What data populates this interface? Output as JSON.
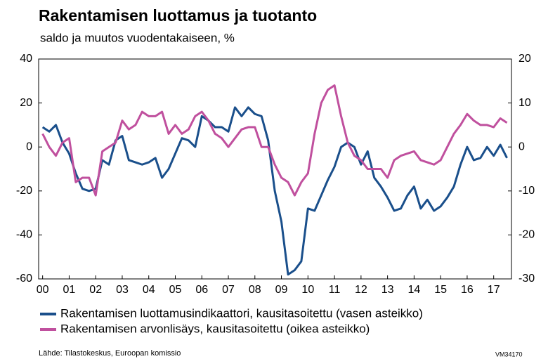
{
  "chart_data": {
    "type": "line",
    "title": "Rakentamisen luottamus ja tuotanto",
    "subtitle": "saldo ja muutos vuodentakaiseen, %",
    "source": "Lähde: Tilastokeskus, Euroopan komissio",
    "code": "VM34170",
    "x": [
      2000,
      2000.25,
      2000.5,
      2000.75,
      2001,
      2001.25,
      2001.5,
      2001.75,
      2002,
      2002.25,
      2002.5,
      2002.75,
      2003,
      2003.25,
      2003.5,
      2003.75,
      2004,
      2004.25,
      2004.5,
      2004.75,
      2005,
      2005.25,
      2005.5,
      2005.75,
      2006,
      2006.25,
      2006.5,
      2006.75,
      2007,
      2007.25,
      2007.5,
      2007.75,
      2008,
      2008.25,
      2008.5,
      2008.75,
      2009,
      2009.25,
      2009.5,
      2009.75,
      2010,
      2010.25,
      2010.5,
      2010.75,
      2011,
      2011.25,
      2011.5,
      2011.75,
      2012,
      2012.25,
      2012.5,
      2012.75,
      2013,
      2013.25,
      2013.5,
      2013.75,
      2014,
      2014.25,
      2014.5,
      2014.75,
      2015,
      2015.25,
      2015.5,
      2015.75,
      2016,
      2016.25,
      2016.5,
      2016.75,
      2017,
      2017.25,
      2017.5
    ],
    "series": [
      {
        "name": "Rakentamisen luottamusindikaattori, kausitasoitettu (vasen asteikko)",
        "color": "#1a4f8b",
        "axis": "y",
        "values": [
          9,
          7,
          10,
          2,
          -3,
          -12,
          -19,
          -20,
          -19,
          -6,
          -8,
          3,
          5,
          -6,
          -7,
          -8,
          -7,
          -5,
          -14,
          -10,
          -3,
          4,
          3,
          0,
          14,
          12,
          9,
          9,
          7,
          18,
          14,
          18,
          15,
          14,
          3,
          -20,
          -34,
          -58,
          -56,
          -52,
          -28,
          -29,
          -22,
          -15,
          -9,
          0,
          2,
          0,
          -8,
          -2,
          -14,
          -18,
          -23,
          -29,
          -28,
          -22,
          -18,
          -28,
          -24,
          -29,
          -27,
          -23,
          -18,
          -8,
          0,
          -6,
          -5,
          0,
          -4,
          1,
          -5
        ]
      },
      {
        "name": "Rakentamisen arvonlisäys, kausitasoitettu (oikea asteikko)",
        "color": "#c0509e",
        "axis": "y2",
        "values": [
          3,
          0,
          -2,
          1,
          2,
          -8,
          -7,
          -7,
          -11,
          -1,
          0,
          1,
          6,
          4,
          5,
          8,
          7,
          7,
          8,
          3,
          5,
          3,
          4,
          7,
          8,
          6,
          3,
          2,
          0,
          2,
          4,
          4.5,
          4.5,
          0,
          0,
          -4,
          -7,
          -8,
          -11,
          -8,
          -6,
          3,
          10,
          13,
          14,
          7,
          1,
          -2,
          -3,
          -5,
          -5,
          -5,
          -7,
          -3,
          -2,
          -1.5,
          -1,
          -3,
          -3.5,
          -4,
          -3,
          0,
          3,
          5,
          7.5,
          6,
          5,
          5,
          4.5,
          6.5,
          5.5
        ]
      }
    ],
    "xlim": [
      1999.85,
      2017.67
    ],
    "xticks": [
      {
        "value": 2000,
        "label": "00"
      },
      {
        "value": 2001,
        "label": "01"
      },
      {
        "value": 2002,
        "label": "02"
      },
      {
        "value": 2003,
        "label": "03"
      },
      {
        "value": 2004,
        "label": "04"
      },
      {
        "value": 2005,
        "label": "05"
      },
      {
        "value": 2006,
        "label": "06"
      },
      {
        "value": 2007,
        "label": "07"
      },
      {
        "value": 2008,
        "label": "08"
      },
      {
        "value": 2009,
        "label": "09"
      },
      {
        "value": 2010,
        "label": "10"
      },
      {
        "value": 2011,
        "label": "11"
      },
      {
        "value": 2012,
        "label": "12"
      },
      {
        "value": 2013,
        "label": "13"
      },
      {
        "value": 2014,
        "label": "14"
      },
      {
        "value": 2015,
        "label": "15"
      },
      {
        "value": 2016,
        "label": "16"
      },
      {
        "value": 2017,
        "label": "17"
      }
    ],
    "ylim": [
      -60,
      40
    ],
    "yticks": [
      -60,
      -40,
      -20,
      0,
      20,
      40
    ],
    "y2lim": [
      -30,
      20
    ],
    "y2ticks": [
      -30,
      -20,
      -10,
      0,
      10,
      20
    ],
    "grid": false
  }
}
